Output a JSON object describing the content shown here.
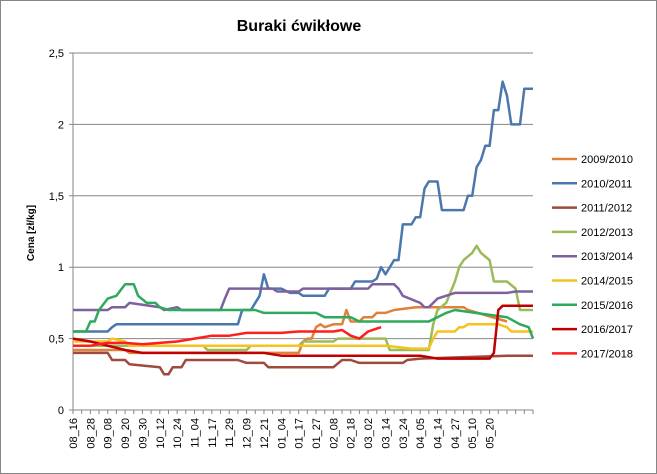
{
  "chart_data": {
    "type": "line",
    "title": "Buraki ćwikłowe",
    "xlabel": "",
    "ylabel": "Cena [zł/kg]",
    "ylim": [
      0,
      2.5
    ],
    "yticks": [
      "0",
      "0,5",
      "1",
      "1,5",
      "2",
      "2,5"
    ],
    "grid": "horizontal",
    "legend_position": "right",
    "x_index_range": [
      0,
      100
    ],
    "categories": [
      "08_16",
      "08_28",
      "09_08",
      "09_20",
      "09_30",
      "10_12",
      "10_24",
      "11_04",
      "11_17",
      "11_29",
      "12_09",
      "12_21",
      "01_04",
      "01_17",
      "01_27",
      "02_08",
      "02_18",
      "03_02",
      "03_14",
      "03_24",
      "04_05",
      "04_14",
      "04_27",
      "05_10",
      "05_20"
    ],
    "category_index": [
      0,
      4,
      8,
      12,
      16,
      20,
      24,
      28,
      32,
      36,
      40,
      44,
      48,
      52,
      56,
      60,
      64,
      68,
      72,
      76,
      80,
      84,
      88,
      92,
      96
    ],
    "series": [
      {
        "name": "2009/2010",
        "color": "#E0813B",
        "points": [
          [
            0,
            0.42
          ],
          [
            12,
            0.42
          ],
          [
            13,
            0.4
          ],
          [
            52,
            0.4
          ],
          [
            53,
            0.48
          ],
          [
            54,
            0.5
          ],
          [
            55,
            0.5
          ],
          [
            56,
            0.58
          ],
          [
            57,
            0.6
          ],
          [
            58,
            0.58
          ],
          [
            60,
            0.6
          ],
          [
            62,
            0.6
          ],
          [
            63,
            0.7
          ],
          [
            64,
            0.62
          ],
          [
            66,
            0.62
          ],
          [
            67,
            0.65
          ],
          [
            69,
            0.65
          ],
          [
            70,
            0.68
          ],
          [
            72,
            0.68
          ],
          [
            74,
            0.7
          ],
          [
            79,
            0.72
          ],
          [
            90,
            0.72
          ],
          [
            91,
            0.7
          ],
          [
            100,
            0.62
          ]
        ]
      },
      {
        "name": "2010/2011",
        "color": "#4A78AD",
        "points": [
          [
            0,
            0.55
          ],
          [
            8,
            0.55
          ],
          [
            9,
            0.58
          ],
          [
            10,
            0.6
          ],
          [
            38,
            0.6
          ],
          [
            39,
            0.7
          ],
          [
            41,
            0.7
          ],
          [
            43,
            0.8
          ],
          [
            44,
            0.95
          ],
          [
            45,
            0.85
          ],
          [
            48,
            0.85
          ],
          [
            50,
            0.82
          ],
          [
            52,
            0.82
          ],
          [
            53,
            0.8
          ],
          [
            58,
            0.8
          ],
          [
            59,
            0.85
          ],
          [
            64,
            0.85
          ],
          [
            65,
            0.9
          ],
          [
            69,
            0.9
          ],
          [
            70,
            0.92
          ],
          [
            71,
            1.0
          ],
          [
            72,
            0.95
          ],
          [
            74,
            1.05
          ],
          [
            75,
            1.05
          ],
          [
            76,
            1.3
          ],
          [
            78,
            1.3
          ],
          [
            79,
            1.35
          ],
          [
            80,
            1.35
          ],
          [
            81,
            1.55
          ],
          [
            82,
            1.6
          ],
          [
            84,
            1.6
          ],
          [
            85,
            1.4
          ],
          [
            90,
            1.4
          ],
          [
            91,
            1.5
          ],
          [
            92,
            1.5
          ],
          [
            93,
            1.7
          ],
          [
            94,
            1.75
          ],
          [
            95,
            1.85
          ],
          [
            96,
            1.85
          ],
          [
            97,
            2.1
          ],
          [
            98,
            2.1
          ],
          [
            99,
            2.3
          ],
          [
            100,
            2.2
          ],
          [
            101,
            2.0
          ],
          [
            103,
            2.0
          ],
          [
            104,
            2.25
          ],
          [
            106,
            2.25
          ]
        ]
      },
      {
        "name": "2011/2012",
        "color": "#9E4A3C",
        "points": [
          [
            0,
            0.4
          ],
          [
            8,
            0.4
          ],
          [
            9,
            0.35
          ],
          [
            12,
            0.35
          ],
          [
            13,
            0.32
          ],
          [
            20,
            0.3
          ],
          [
            21,
            0.25
          ],
          [
            22,
            0.25
          ],
          [
            23,
            0.3
          ],
          [
            25,
            0.3
          ],
          [
            26,
            0.35
          ],
          [
            38,
            0.35
          ],
          [
            40,
            0.33
          ],
          [
            44,
            0.33
          ],
          [
            45,
            0.3
          ],
          [
            60,
            0.3
          ],
          [
            62,
            0.35
          ],
          [
            64,
            0.35
          ],
          [
            66,
            0.33
          ],
          [
            76,
            0.33
          ],
          [
            77,
            0.35
          ],
          [
            80,
            0.36
          ],
          [
            100,
            0.38
          ],
          [
            106,
            0.38
          ]
        ]
      },
      {
        "name": "2012/2013",
        "color": "#9BBB59",
        "points": [
          [
            0,
            0.45
          ],
          [
            30,
            0.45
          ],
          [
            31,
            0.42
          ],
          [
            40,
            0.42
          ],
          [
            41,
            0.45
          ],
          [
            45,
            0.45
          ],
          [
            52,
            0.45
          ],
          [
            53,
            0.48
          ],
          [
            60,
            0.48
          ],
          [
            61,
            0.5
          ],
          [
            72,
            0.5
          ],
          [
            73,
            0.42
          ],
          [
            82,
            0.42
          ],
          [
            83,
            0.6
          ],
          [
            84,
            0.7
          ],
          [
            86,
            0.75
          ],
          [
            88,
            0.9
          ],
          [
            89,
            1.0
          ],
          [
            90,
            1.05
          ],
          [
            92,
            1.1
          ],
          [
            93,
            1.15
          ],
          [
            94,
            1.1
          ],
          [
            96,
            1.05
          ],
          [
            97,
            0.9
          ],
          [
            100,
            0.9
          ],
          [
            102,
            0.85
          ],
          [
            103,
            0.7
          ],
          [
            106,
            0.7
          ]
        ]
      },
      {
        "name": "2013/2014",
        "color": "#7E609E",
        "points": [
          [
            0,
            0.7
          ],
          [
            8,
            0.7
          ],
          [
            9,
            0.72
          ],
          [
            12,
            0.72
          ],
          [
            13,
            0.75
          ],
          [
            20,
            0.72
          ],
          [
            21,
            0.7
          ],
          [
            24,
            0.72
          ],
          [
            25,
            0.7
          ],
          [
            34,
            0.7
          ],
          [
            35,
            0.78
          ],
          [
            36,
            0.85
          ],
          [
            46,
            0.85
          ],
          [
            47,
            0.83
          ],
          [
            52,
            0.83
          ],
          [
            53,
            0.85
          ],
          [
            68,
            0.85
          ],
          [
            69,
            0.88
          ],
          [
            74,
            0.88
          ],
          [
            75,
            0.85
          ],
          [
            76,
            0.8
          ],
          [
            80,
            0.75
          ],
          [
            81,
            0.72
          ],
          [
            82,
            0.72
          ],
          [
            84,
            0.78
          ],
          [
            88,
            0.82
          ],
          [
            100,
            0.82
          ],
          [
            102,
            0.83
          ],
          [
            106,
            0.83
          ]
        ]
      },
      {
        "name": "2014/2015",
        "color": "#F5C320",
        "points": [
          [
            0,
            0.48
          ],
          [
            8,
            0.48
          ],
          [
            9,
            0.5
          ],
          [
            12,
            0.48
          ],
          [
            13,
            0.45
          ],
          [
            72,
            0.45
          ],
          [
            78,
            0.43
          ],
          [
            82,
            0.43
          ],
          [
            83,
            0.5
          ],
          [
            84,
            0.55
          ],
          [
            88,
            0.55
          ],
          [
            89,
            0.58
          ],
          [
            90,
            0.58
          ],
          [
            91,
            0.6
          ],
          [
            98,
            0.6
          ],
          [
            100,
            0.58
          ],
          [
            101,
            0.55
          ],
          [
            106,
            0.55
          ]
        ]
      },
      {
        "name": "2015/2016",
        "color": "#2DAA5B",
        "points": [
          [
            0,
            0.55
          ],
          [
            3,
            0.55
          ],
          [
            4,
            0.62
          ],
          [
            5,
            0.62
          ],
          [
            6,
            0.7
          ],
          [
            8,
            0.78
          ],
          [
            10,
            0.8
          ],
          [
            12,
            0.88
          ],
          [
            14,
            0.88
          ],
          [
            15,
            0.8
          ],
          [
            17,
            0.75
          ],
          [
            19,
            0.75
          ],
          [
            20,
            0.72
          ],
          [
            22,
            0.7
          ],
          [
            42,
            0.7
          ],
          [
            44,
            0.68
          ],
          [
            56,
            0.68
          ],
          [
            58,
            0.65
          ],
          [
            64,
            0.65
          ],
          [
            66,
            0.62
          ],
          [
            82,
            0.62
          ],
          [
            84,
            0.65
          ],
          [
            86,
            0.68
          ],
          [
            88,
            0.7
          ],
          [
            100,
            0.65
          ],
          [
            103,
            0.6
          ],
          [
            105,
            0.58
          ],
          [
            106,
            0.5
          ]
        ]
      },
      {
        "name": "2016/2017",
        "color": "#C00000",
        "points": [
          [
            0,
            0.5
          ],
          [
            4,
            0.48
          ],
          [
            8,
            0.45
          ],
          [
            12,
            0.42
          ],
          [
            16,
            0.4
          ],
          [
            44,
            0.4
          ],
          [
            48,
            0.38
          ],
          [
            80,
            0.38
          ],
          [
            84,
            0.36
          ],
          [
            96,
            0.36
          ],
          [
            97,
            0.4
          ],
          [
            98,
            0.7
          ],
          [
            99,
            0.73
          ],
          [
            106,
            0.73
          ]
        ]
      },
      {
        "name": "2017/2018",
        "color": "#FF1D1D",
        "points": [
          [
            0,
            0.45
          ],
          [
            4,
            0.45
          ],
          [
            8,
            0.47
          ],
          [
            12,
            0.47
          ],
          [
            16,
            0.46
          ],
          [
            24,
            0.48
          ],
          [
            28,
            0.5
          ],
          [
            32,
            0.52
          ],
          [
            36,
            0.52
          ],
          [
            40,
            0.54
          ],
          [
            48,
            0.54
          ],
          [
            52,
            0.55
          ],
          [
            56,
            0.55
          ],
          [
            60,
            0.55
          ],
          [
            62,
            0.56
          ],
          [
            64,
            0.52
          ],
          [
            66,
            0.5
          ],
          [
            68,
            0.55
          ],
          [
            70,
            0.57
          ],
          [
            71,
            0.58
          ]
        ]
      }
    ]
  }
}
